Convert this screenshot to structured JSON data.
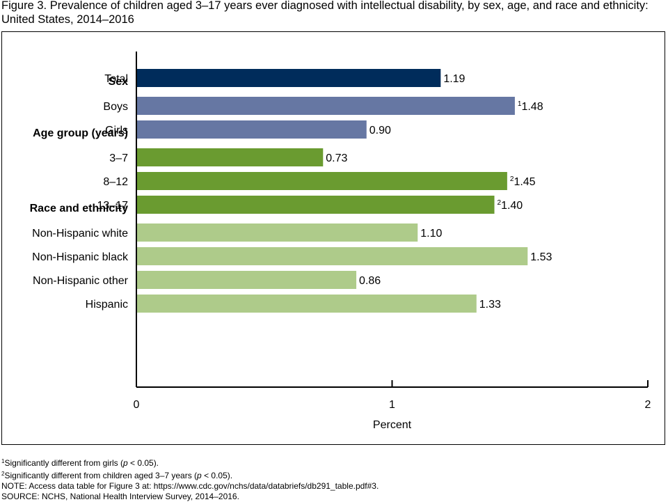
{
  "figure": {
    "title": "Figure 3. Prevalence of children aged 3–17 years ever diagnosed with intellectual disability, by sex, age, and race and ethnicity: United States, 2014–2016"
  },
  "colors": {
    "total": "#002c5b",
    "sex": "#6677a3",
    "age": "#6a9b30",
    "race": "#aecb8a"
  },
  "chart_data": {
    "type": "bar",
    "orientation": "horizontal",
    "xlabel": "Percent",
    "xlim": [
      0,
      2
    ],
    "xticks": [
      "0",
      "1",
      "2"
    ],
    "grid": false,
    "groups": [
      {
        "heading": "",
        "color_key": "total",
        "items": [
          {
            "label": "Total",
            "value": 1.19,
            "value_label": "1.19",
            "note": ""
          }
        ]
      },
      {
        "heading": "Sex",
        "color_key": "sex",
        "items": [
          {
            "label": "Boys",
            "value": 1.48,
            "value_label": "1.48",
            "note": "1"
          },
          {
            "label": "Girls",
            "value": 0.9,
            "value_label": "0.90",
            "note": ""
          }
        ]
      },
      {
        "heading": "Age group (years)",
        "color_key": "age",
        "items": [
          {
            "label": "3–7",
            "value": 0.73,
            "value_label": "0.73",
            "note": ""
          },
          {
            "label": "8–12",
            "value": 1.45,
            "value_label": "1.45",
            "note": "2"
          },
          {
            "label": "13–17",
            "value": 1.4,
            "value_label": "1.40",
            "note": "2"
          }
        ]
      },
      {
        "heading": "Race and ethnicity",
        "color_key": "race",
        "items": [
          {
            "label": "Non-Hispanic white",
            "value": 1.1,
            "value_label": "1.10",
            "note": ""
          },
          {
            "label": "Non-Hispanic black",
            "value": 1.53,
            "value_label": "1.53",
            "note": ""
          },
          {
            "label": "Non-Hispanic other",
            "value": 0.86,
            "value_label": "0.86",
            "note": ""
          },
          {
            "label": "Hispanic",
            "value": 1.33,
            "value_label": "1.33",
            "note": ""
          }
        ]
      }
    ]
  },
  "footnotes": {
    "fn1": {
      "mark": "1",
      "pre": "Significantly different from girls (",
      "p": "p",
      "post": " < 0.05)."
    },
    "fn2": {
      "mark": "2",
      "pre": "Significantly different from children aged 3–7 years (",
      "p": "p",
      "post": " < 0.05)."
    },
    "note": "NOTE: Access data table for Figure 3 at: https://www.cdc.gov/nchs/data/databriefs/db291_table.pdf#3.",
    "source": "SOURCE: NCHS, National Health Interview Survey, 2014–2016."
  }
}
